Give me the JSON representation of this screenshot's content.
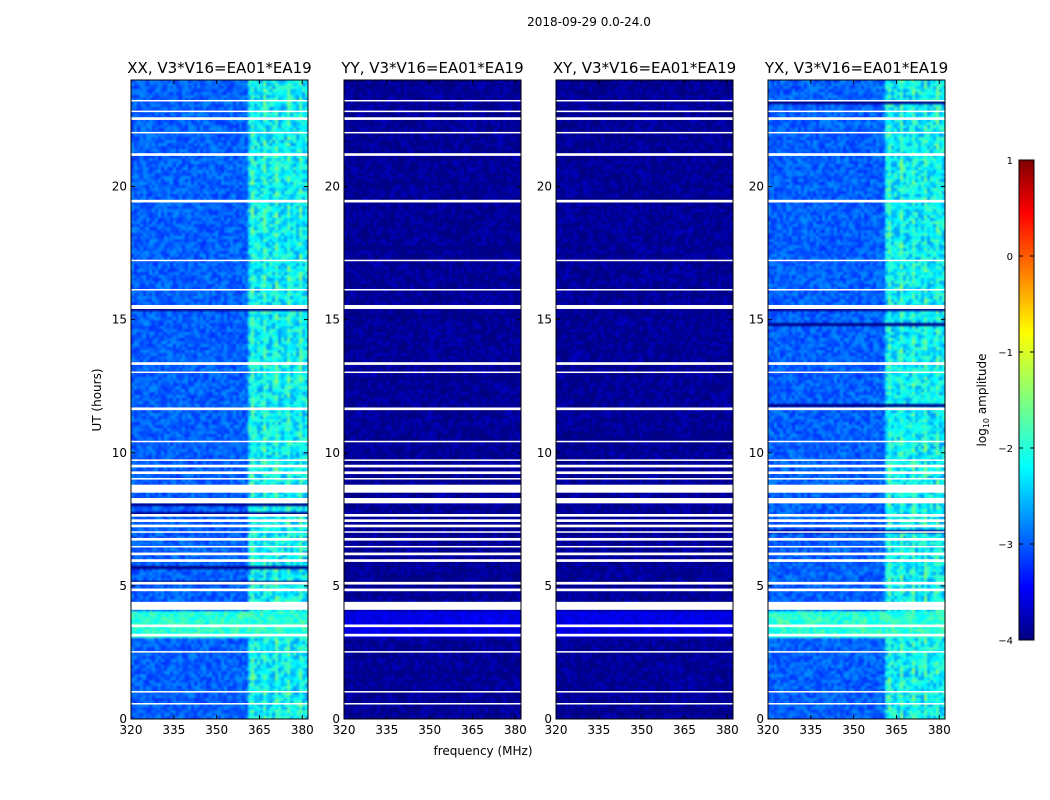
{
  "chart_data": {
    "type": "heatmap",
    "title": "2018-09-29 0.0-24.0",
    "xlabel": "frequency (MHz)",
    "ylabel": "UT (hours)",
    "xlim": [
      320,
      382
    ],
    "ylim": [
      0,
      24
    ],
    "xticks": [
      320,
      335,
      350,
      365,
      380
    ],
    "xtick_labels": [
      "320",
      "335",
      "350",
      "365",
      "380"
    ],
    "yticks": [
      0,
      5,
      10,
      15,
      20
    ],
    "ytick_labels": [
      "0",
      "5",
      "10",
      "15",
      "20"
    ],
    "panels": [
      {
        "name": "XX",
        "title": "XX, V3*V16=EA01*EA19",
        "median_log_amplitude": -2.9,
        "band_start_mhz": 361,
        "band_log_amplitude": -2.2
      },
      {
        "name": "YY",
        "title": "YY, V3*V16=EA01*EA19",
        "median_log_amplitude": -3.9,
        "band_start_mhz": null,
        "band_log_amplitude": null
      },
      {
        "name": "XY",
        "title": "XY, V3*V16=EA01*EA19",
        "median_log_amplitude": -3.9,
        "band_start_mhz": null,
        "band_log_amplitude": null
      },
      {
        "name": "YX",
        "title": "YX, V3*V16=EA01*EA19",
        "median_log_amplitude": -2.9,
        "band_start_mhz": 361,
        "band_log_amplitude": -2.2
      }
    ],
    "bright_interval_hours": [
      3.0,
      4.1
    ],
    "blank_rows_hours": [
      [
        4.1,
        4.4
      ],
      [
        4.8,
        4.9
      ],
      [
        5.05,
        5.15
      ],
      [
        5.9,
        6.0
      ],
      [
        6.15,
        6.25
      ],
      [
        6.45,
        6.5
      ],
      [
        6.7,
        6.8
      ],
      [
        7.0,
        7.05
      ],
      [
        7.2,
        7.3
      ],
      [
        7.4,
        7.5
      ],
      [
        7.6,
        7.7
      ],
      [
        8.1,
        8.3
      ],
      [
        8.5,
        8.8
      ],
      [
        9.0,
        9.05
      ],
      [
        9.2,
        9.3
      ],
      [
        9.45,
        9.55
      ],
      [
        9.7,
        9.75
      ],
      [
        10.4,
        10.45
      ],
      [
        11.6,
        11.7
      ],
      [
        13.0,
        13.05
      ],
      [
        13.3,
        13.4
      ],
      [
        15.4,
        15.55
      ],
      [
        16.1,
        16.15
      ],
      [
        17.2,
        17.25
      ],
      [
        19.4,
        19.5
      ],
      [
        21.15,
        21.25
      ],
      [
        22.0,
        22.05
      ],
      [
        22.5,
        22.6
      ],
      [
        22.8,
        22.85
      ],
      [
        23.2,
        23.25
      ],
      [
        2.5,
        2.55
      ],
      [
        3.1,
        3.2
      ],
      [
        3.45,
        3.55
      ],
      [
        1.0,
        1.05
      ],
      [
        0.55,
        0.6
      ]
    ],
    "colorbar": {
      "label": "log10 amplitude",
      "label_main": "log",
      "label_sub": "10",
      "label_rest": " amplitude",
      "range": [
        -4,
        1
      ],
      "ticks": [
        1,
        0,
        -1,
        -2,
        -3,
        -4
      ],
      "tick_labels": [
        "1",
        "0",
        "−1",
        "−2",
        "−3",
        "−4"
      ],
      "colormap": "jet"
    }
  }
}
